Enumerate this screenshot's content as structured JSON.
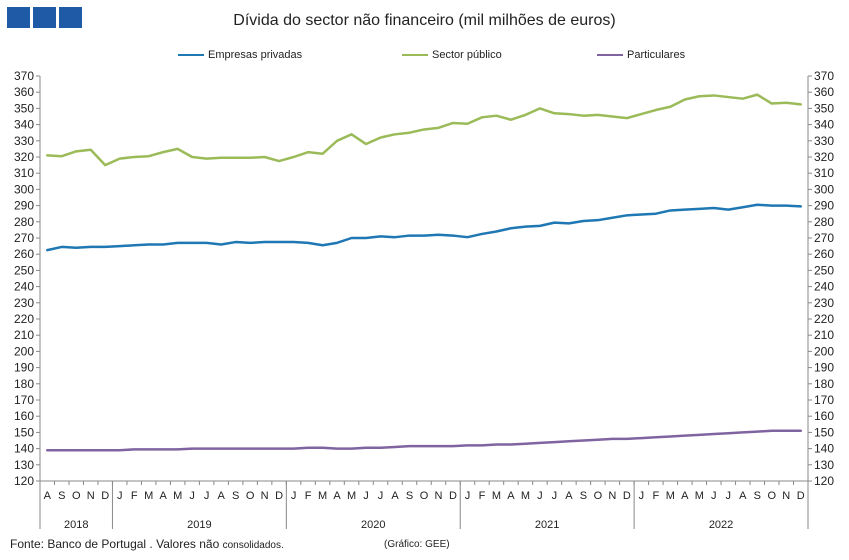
{
  "title": "Dívida do sector não financeiro (mil milhões de euros)",
  "source_main": "Fonte: Banco de Portugal . Valores não",
  "source_small": "consolidados.",
  "credit": "(Gráfico: GEE)",
  "colors": {
    "brand": "#1f5aa6",
    "empresas": "#1f77b4",
    "publico": "#9bbb59",
    "particulares": "#8064a2"
  },
  "chart_data": {
    "type": "line",
    "title": "Dívida do sector não financeiro (mil milhões de euros)",
    "xlabel": "",
    "ylabel": "",
    "ylim": [
      120,
      370
    ],
    "ytick_step": 10,
    "grid": false,
    "legend_position": "top",
    "categories": [
      "A",
      "S",
      "O",
      "N",
      "D",
      "J",
      "F",
      "M",
      "A",
      "M",
      "J",
      "J",
      "A",
      "S",
      "O",
      "N",
      "D",
      "J",
      "F",
      "M",
      "A",
      "M",
      "J",
      "J",
      "A",
      "S",
      "O",
      "N",
      "D",
      "J",
      "F",
      "M",
      "A",
      "M",
      "J",
      "J",
      "A",
      "S",
      "O",
      "N",
      "D",
      "J",
      "F",
      "M",
      "A",
      "M",
      "J",
      "J",
      "A",
      "S",
      "O",
      "N",
      "D"
    ],
    "years": [
      {
        "label": "2018",
        "start": 0,
        "end": 4
      },
      {
        "label": "2019",
        "start": 5,
        "end": 16
      },
      {
        "label": "2020",
        "start": 17,
        "end": 28
      },
      {
        "label": "2021",
        "start": 29,
        "end": 40
      },
      {
        "label": "2022",
        "start": 41,
        "end": 52
      }
    ],
    "series": [
      {
        "name": "Empresas privadas",
        "color": "#1f77b4",
        "values": [
          262.5,
          264.5,
          264,
          264.5,
          264.5,
          265,
          265.5,
          266,
          266,
          267,
          267,
          267,
          266,
          267.5,
          267,
          267.5,
          267.5,
          267.5,
          267,
          265.5,
          267,
          270,
          270,
          271,
          270.5,
          271.5,
          271.5,
          272,
          271.5,
          270.5,
          272.5,
          274,
          276,
          277,
          277.5,
          279.5,
          279,
          280.5,
          281,
          282.5,
          284,
          284.5,
          285,
          287,
          287.5,
          288,
          288.5,
          287.5,
          289,
          290.5,
          290,
          290,
          289.5
        ]
      },
      {
        "name": "Sector público",
        "color": "#9bbb59",
        "values": [
          321,
          320.5,
          323.5,
          324.5,
          315,
          319,
          320,
          320.5,
          323,
          325,
          320,
          319,
          319.5,
          319.5,
          319.5,
          320,
          317.5,
          320,
          323,
          322,
          330,
          334,
          328,
          332,
          334,
          335,
          337,
          338,
          341,
          340.5,
          344.5,
          345.5,
          343,
          346,
          350,
          347,
          346.5,
          345.5,
          346,
          345,
          344,
          346.5,
          349,
          351,
          355.5,
          357.5,
          358,
          357,
          356,
          358.5,
          353,
          353.5,
          352.5
        ]
      },
      {
        "name": "Particulares",
        "color": "#8064a2",
        "values": [
          139,
          139,
          139,
          139,
          139,
          139,
          139.5,
          139.5,
          139.5,
          139.5,
          140,
          140,
          140,
          140,
          140,
          140,
          140,
          140,
          140.5,
          140.5,
          140,
          140,
          140.5,
          140.5,
          141,
          141.5,
          141.5,
          141.5,
          141.5,
          142,
          142,
          142.5,
          142.5,
          143,
          143.5,
          144,
          144.5,
          145,
          145.5,
          146,
          146,
          146.5,
          147,
          147.5,
          148,
          148.5,
          149,
          149.5,
          150,
          150.5,
          151,
          151,
          151
        ]
      }
    ]
  }
}
